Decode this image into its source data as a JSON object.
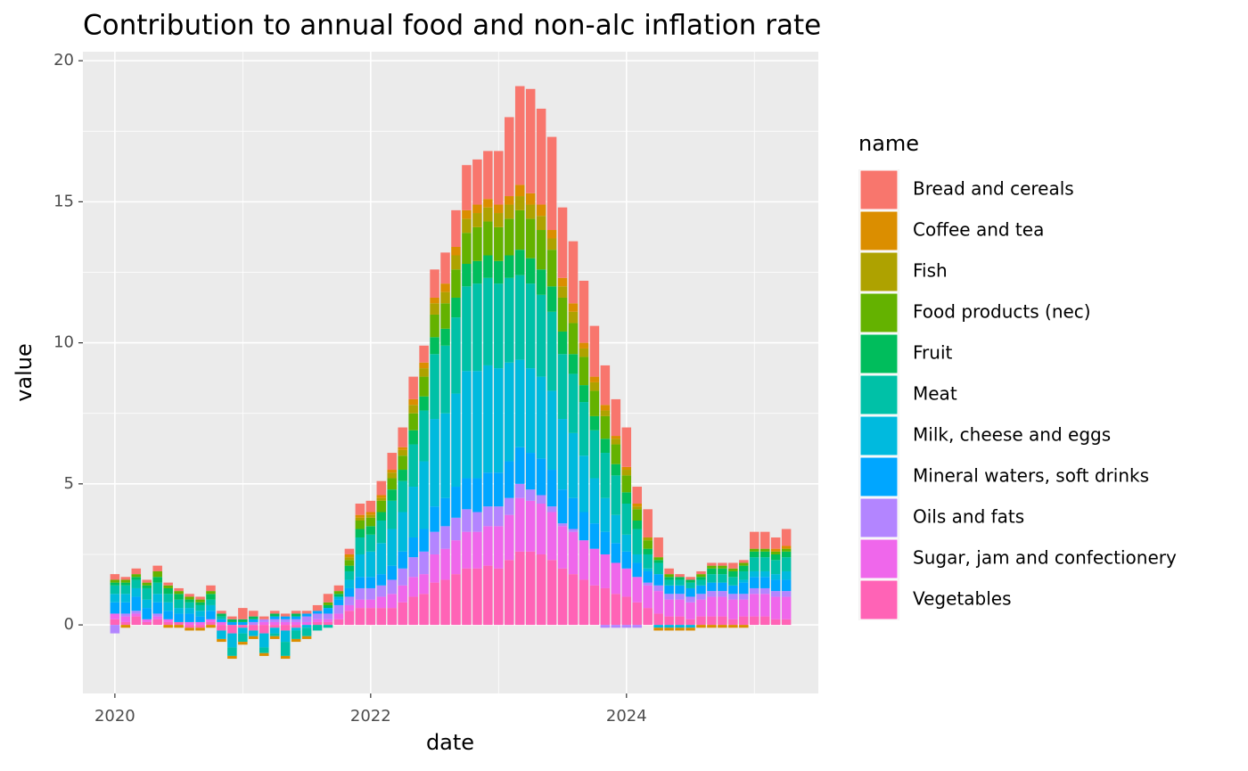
{
  "chart_data": {
    "type": "stacked_bar",
    "title": "Contribution to annual food and non-alc inflation rate",
    "x_label": "date",
    "y_label": "value",
    "legend_title": "name",
    "legend_position": "right",
    "grid": true,
    "x": [
      "2020-01",
      "2020-02",
      "2020-03",
      "2020-04",
      "2020-05",
      "2020-06",
      "2020-07",
      "2020-08",
      "2020-09",
      "2020-10",
      "2020-11",
      "2020-12",
      "2021-01",
      "2021-02",
      "2021-03",
      "2021-04",
      "2021-05",
      "2021-06",
      "2021-07",
      "2021-08",
      "2021-09",
      "2021-10",
      "2021-11",
      "2021-12",
      "2022-01",
      "2022-02",
      "2022-03",
      "2022-04",
      "2022-05",
      "2022-06",
      "2022-07",
      "2022-08",
      "2022-09",
      "2022-10",
      "2022-11",
      "2022-12",
      "2023-01",
      "2023-02",
      "2023-03",
      "2023-04",
      "2023-05",
      "2023-06",
      "2023-07",
      "2023-08",
      "2023-09",
      "2023-10",
      "2023-11",
      "2023-12",
      "2024-01",
      "2024-02",
      "2024-03",
      "2024-04",
      "2024-05",
      "2024-06",
      "2024-07",
      "2024-08",
      "2024-09",
      "2024-10",
      "2024-11",
      "2024-12",
      "2025-01",
      "2025-02",
      "2025-03",
      "2025-04"
    ],
    "xlim": [
      "2019-10",
      "2025-07"
    ],
    "xticks": [
      {
        "value": "2020-01",
        "label": "2020"
      },
      {
        "value": "2022-01",
        "label": "2022"
      },
      {
        "value": "2024-01",
        "label": "2024"
      }
    ],
    "ylim": [
      -2.43,
      20.32
    ],
    "yticks": [
      0,
      5,
      10,
      15,
      20
    ],
    "series": [
      {
        "name": "Bread and cereals",
        "color": "#F8766D",
        "values": [
          0.2,
          0.1,
          0.2,
          0.1,
          0.2,
          0.1,
          0.1,
          0.1,
          0.1,
          0.2,
          0.1,
          0.1,
          0.4,
          0.2,
          0.1,
          0.1,
          0.1,
          0.1,
          0.1,
          0.2,
          0.3,
          0.2,
          0.2,
          0.4,
          0.4,
          0.5,
          0.6,
          0.7,
          0.8,
          0.6,
          1.0,
          1.1,
          1.3,
          1.6,
          1.6,
          1.7,
          1.9,
          2.8,
          3.5,
          3.7,
          3.4,
          3.3,
          2.5,
          2.2,
          2.2,
          1.8,
          1.4,
          1.3,
          1.4,
          0.6,
          1.0,
          0.7,
          0.2,
          0.1,
          0.1,
          0.1,
          0.1,
          0.1,
          0.2,
          0.1,
          0.6,
          0.6,
          0.4,
          0.6
        ]
      },
      {
        "name": "Coffee and tea",
        "color": "#DB8E00",
        "values": [
          0.0,
          -0.1,
          0.0,
          0.0,
          0.0,
          -0.1,
          -0.1,
          -0.1,
          -0.1,
          -0.1,
          -0.1,
          -0.1,
          -0.1,
          -0.1,
          -0.1,
          -0.1,
          -0.1,
          -0.1,
          -0.1,
          0.0,
          0.0,
          0.0,
          0.1,
          0.1,
          0.1,
          0.1,
          0.1,
          0.1,
          0.2,
          0.2,
          0.2,
          0.3,
          0.3,
          0.3,
          0.3,
          0.3,
          0.3,
          0.3,
          0.4,
          0.4,
          0.4,
          0.3,
          0.3,
          0.3,
          0.2,
          0.2,
          0.2,
          0.1,
          0.1,
          0.1,
          0.0,
          -0.1,
          -0.1,
          -0.1,
          -0.1,
          -0.1,
          -0.1,
          -0.1,
          -0.1,
          -0.1,
          0.0,
          0.0,
          0.1,
          0.1
        ]
      },
      {
        "name": "Fish",
        "color": "#AEA200",
        "values": [
          0,
          0,
          0,
          0,
          0,
          0,
          0,
          0,
          0,
          0,
          0,
          0,
          0,
          0,
          0,
          0,
          0,
          0,
          0,
          0,
          0,
          0,
          0.1,
          0.1,
          0.1,
          0.1,
          0.2,
          0.2,
          0.3,
          0.3,
          0.4,
          0.4,
          0.5,
          0.5,
          0.5,
          0.5,
          0.5,
          0.5,
          0.5,
          0.5,
          0.5,
          0.4,
          0.4,
          0.4,
          0.3,
          0.3,
          0.2,
          0.2,
          0.2,
          0.1,
          0.1,
          0,
          0,
          0,
          0,
          0,
          0,
          0,
          0,
          0,
          0,
          0,
          0,
          0
        ]
      },
      {
        "name": "Food products (nec)",
        "color": "#64B200",
        "values": [
          0.1,
          0.1,
          0.1,
          0.1,
          0.2,
          0.1,
          0.1,
          0.1,
          0.1,
          0.1,
          0.0,
          0.0,
          0.0,
          0.0,
          0.0,
          0.0,
          0.0,
          0.0,
          0.0,
          0.0,
          0.1,
          0.1,
          0.2,
          0.3,
          0.3,
          0.4,
          0.4,
          0.5,
          0.6,
          0.7,
          0.8,
          0.9,
          1.0,
          1.1,
          1.2,
          1.2,
          1.2,
          1.3,
          1.4,
          1.4,
          1.4,
          1.3,
          1.2,
          1.1,
          1.0,
          0.9,
          0.8,
          0.7,
          0.6,
          0.4,
          0.3,
          0.1,
          0.1,
          0.0,
          0.0,
          0.1,
          0.1,
          0.1,
          0.1,
          0.1,
          0.1,
          0.1,
          0.1,
          0.1
        ]
      },
      {
        "name": "Fruit",
        "color": "#00BD5C",
        "values": [
          0.1,
          0.1,
          0.1,
          0.1,
          0.2,
          0.2,
          0.2,
          0.1,
          0.1,
          0.2,
          0.1,
          0.1,
          0.1,
          0.1,
          0.0,
          0.1,
          0.0,
          0.1,
          0.0,
          0.0,
          0.1,
          0.1,
          0.2,
          0.3,
          0.3,
          0.3,
          0.4,
          0.4,
          0.5,
          0.5,
          0.6,
          0.6,
          0.7,
          0.8,
          0.8,
          0.8,
          0.8,
          0.8,
          0.9,
          0.9,
          0.9,
          0.9,
          0.8,
          0.7,
          0.6,
          0.5,
          0.5,
          0.4,
          0.4,
          0.3,
          0.2,
          0.1,
          0.1,
          0.1,
          0.1,
          0.1,
          0.2,
          0.2,
          0.2,
          0.2,
          0.2,
          0.2,
          0.2,
          0.2
        ]
      },
      {
        "name": "Meat",
        "color": "#00C1A7",
        "values": [
          0.3,
          0.3,
          0.3,
          0.4,
          0.4,
          0.3,
          0.3,
          0.2,
          0.2,
          0.2,
          0.1,
          -0.3,
          -0.3,
          0.0,
          -0.2,
          -0.1,
          -0.5,
          -0.3,
          -0.3,
          -0.2,
          -0.1,
          0.0,
          0.3,
          0.6,
          0.6,
          0.8,
          1.0,
          1.1,
          1.5,
          1.8,
          2.3,
          2.4,
          2.7,
          3.0,
          3.1,
          3.1,
          3.0,
          3.0,
          3.0,
          3.0,
          2.9,
          2.8,
          2.3,
          2.1,
          1.9,
          1.7,
          1.6,
          1.4,
          1.1,
          0.9,
          0.5,
          0.4,
          0.2,
          0.2,
          0.2,
          0.2,
          0.3,
          0.3,
          0.3,
          0.3,
          0.5,
          0.5,
          0.5,
          0.5
        ]
      },
      {
        "name": "Milk, cheese and eggs",
        "color": "#00BADE",
        "values": [
          0.3,
          0.3,
          0.3,
          0.3,
          0.3,
          0.3,
          0.2,
          0.2,
          0.2,
          0.2,
          -0.3,
          -0.5,
          -0.2,
          -0.2,
          -0.5,
          -0.2,
          -0.4,
          -0.1,
          -0.1,
          0.0,
          0.0,
          0.1,
          0.3,
          0.8,
          0.9,
          1.1,
          1.3,
          1.4,
          1.8,
          2.4,
          3.1,
          3.0,
          3.3,
          3.8,
          3.8,
          3.8,
          3.7,
          3.5,
          3.1,
          3.0,
          2.9,
          2.8,
          2.5,
          2.3,
          2.0,
          1.6,
          1.2,
          1.0,
          0.6,
          0.3,
          0.1,
          -0.1,
          -0.1,
          -0.1,
          -0.1,
          0.0,
          0.0,
          0.0,
          0.0,
          0.1,
          0.2,
          0.2,
          0.2,
          0.3
        ]
      },
      {
        "name": "Mineral waters, soft drinks",
        "color": "#00A6FF",
        "values": [
          0.4,
          0.4,
          0.5,
          0.4,
          0.4,
          0.3,
          0.3,
          0.3,
          0.2,
          0.3,
          0.1,
          0.1,
          0.1,
          0.1,
          0.0,
          0.1,
          0.1,
          0.1,
          0.1,
          0.1,
          0.2,
          0.2,
          0.3,
          0.4,
          0.4,
          0.4,
          0.5,
          0.6,
          0.7,
          0.8,
          0.9,
          1.0,
          1.1,
          1.1,
          1.2,
          1.2,
          1.2,
          1.3,
          1.3,
          1.3,
          1.3,
          1.3,
          1.2,
          1.1,
          1.0,
          0.9,
          0.8,
          0.7,
          0.6,
          0.5,
          0.4,
          0.4,
          0.3,
          0.3,
          0.3,
          0.3,
          0.3,
          0.3,
          0.3,
          0.4,
          0.4,
          0.4,
          0.4,
          0.4
        ]
      },
      {
        "name": "Oils and fats",
        "color": "#B385FF",
        "values": [
          -0.3,
          0.1,
          0.1,
          0.0,
          0.1,
          0.0,
          0.0,
          0.0,
          0.0,
          0.0,
          0.0,
          0.0,
          0.0,
          0.1,
          0.1,
          0.1,
          0.1,
          0.1,
          0.2,
          0.2,
          0.2,
          0.3,
          0.3,
          0.4,
          0.4,
          0.4,
          0.5,
          0.6,
          0.7,
          0.8,
          0.8,
          0.8,
          0.8,
          0.8,
          0.7,
          0.7,
          0.7,
          0.6,
          0.5,
          0.4,
          0.3,
          0.2,
          0.1,
          0.1,
          0.0,
          0.0,
          -0.1,
          -0.1,
          -0.1,
          -0.1,
          0.1,
          0.2,
          0.2,
          0.2,
          0.2,
          0.2,
          0.2,
          0.2,
          0.2,
          0.2,
          0.2,
          0.2,
          0.2,
          0.2
        ]
      },
      {
        "name": "Sugar, jam and confectionery",
        "color": "#EF67EB",
        "values": [
          0.2,
          0.2,
          0.1,
          0.1,
          0.1,
          0.1,
          0.0,
          0.1,
          0.1,
          0.1,
          0.1,
          0.0,
          0.0,
          0.0,
          0.1,
          0.1,
          0.1,
          0.1,
          0.1,
          0.1,
          0.1,
          0.2,
          0.2,
          0.3,
          0.3,
          0.4,
          0.5,
          0.6,
          0.7,
          0.7,
          1.0,
          1.1,
          1.2,
          1.3,
          1.3,
          1.4,
          1.5,
          1.6,
          1.9,
          1.8,
          1.8,
          1.7,
          1.5,
          1.5,
          1.4,
          1.3,
          1.2,
          1.1,
          1.0,
          0.9,
          0.8,
          0.8,
          0.6,
          0.6,
          0.6,
          0.6,
          0.7,
          0.7,
          0.7,
          0.6,
          0.8,
          0.8,
          0.8,
          0.8
        ]
      },
      {
        "name": "Vegetables",
        "color": "#FF63B6",
        "values": [
          0.2,
          0.1,
          0.3,
          0.1,
          0.2,
          0.1,
          0.1,
          -0.1,
          -0.1,
          0.1,
          -0.2,
          -0.3,
          -0.1,
          -0.2,
          -0.3,
          -0.1,
          -0.2,
          -0.1,
          0.0,
          0.1,
          0.1,
          0.2,
          0.5,
          0.6,
          0.6,
          0.6,
          0.6,
          0.8,
          1.0,
          1.1,
          1.5,
          1.6,
          1.8,
          2.0,
          2.0,
          2.1,
          2.0,
          2.3,
          2.6,
          2.6,
          2.5,
          2.3,
          2.0,
          1.8,
          1.6,
          1.4,
          1.3,
          1.1,
          1.0,
          0.8,
          0.6,
          0.4,
          0.3,
          0.3,
          0.2,
          0.3,
          0.3,
          0.3,
          0.2,
          0.3,
          0.3,
          0.3,
          0.2,
          0.2
        ]
      }
    ]
  }
}
